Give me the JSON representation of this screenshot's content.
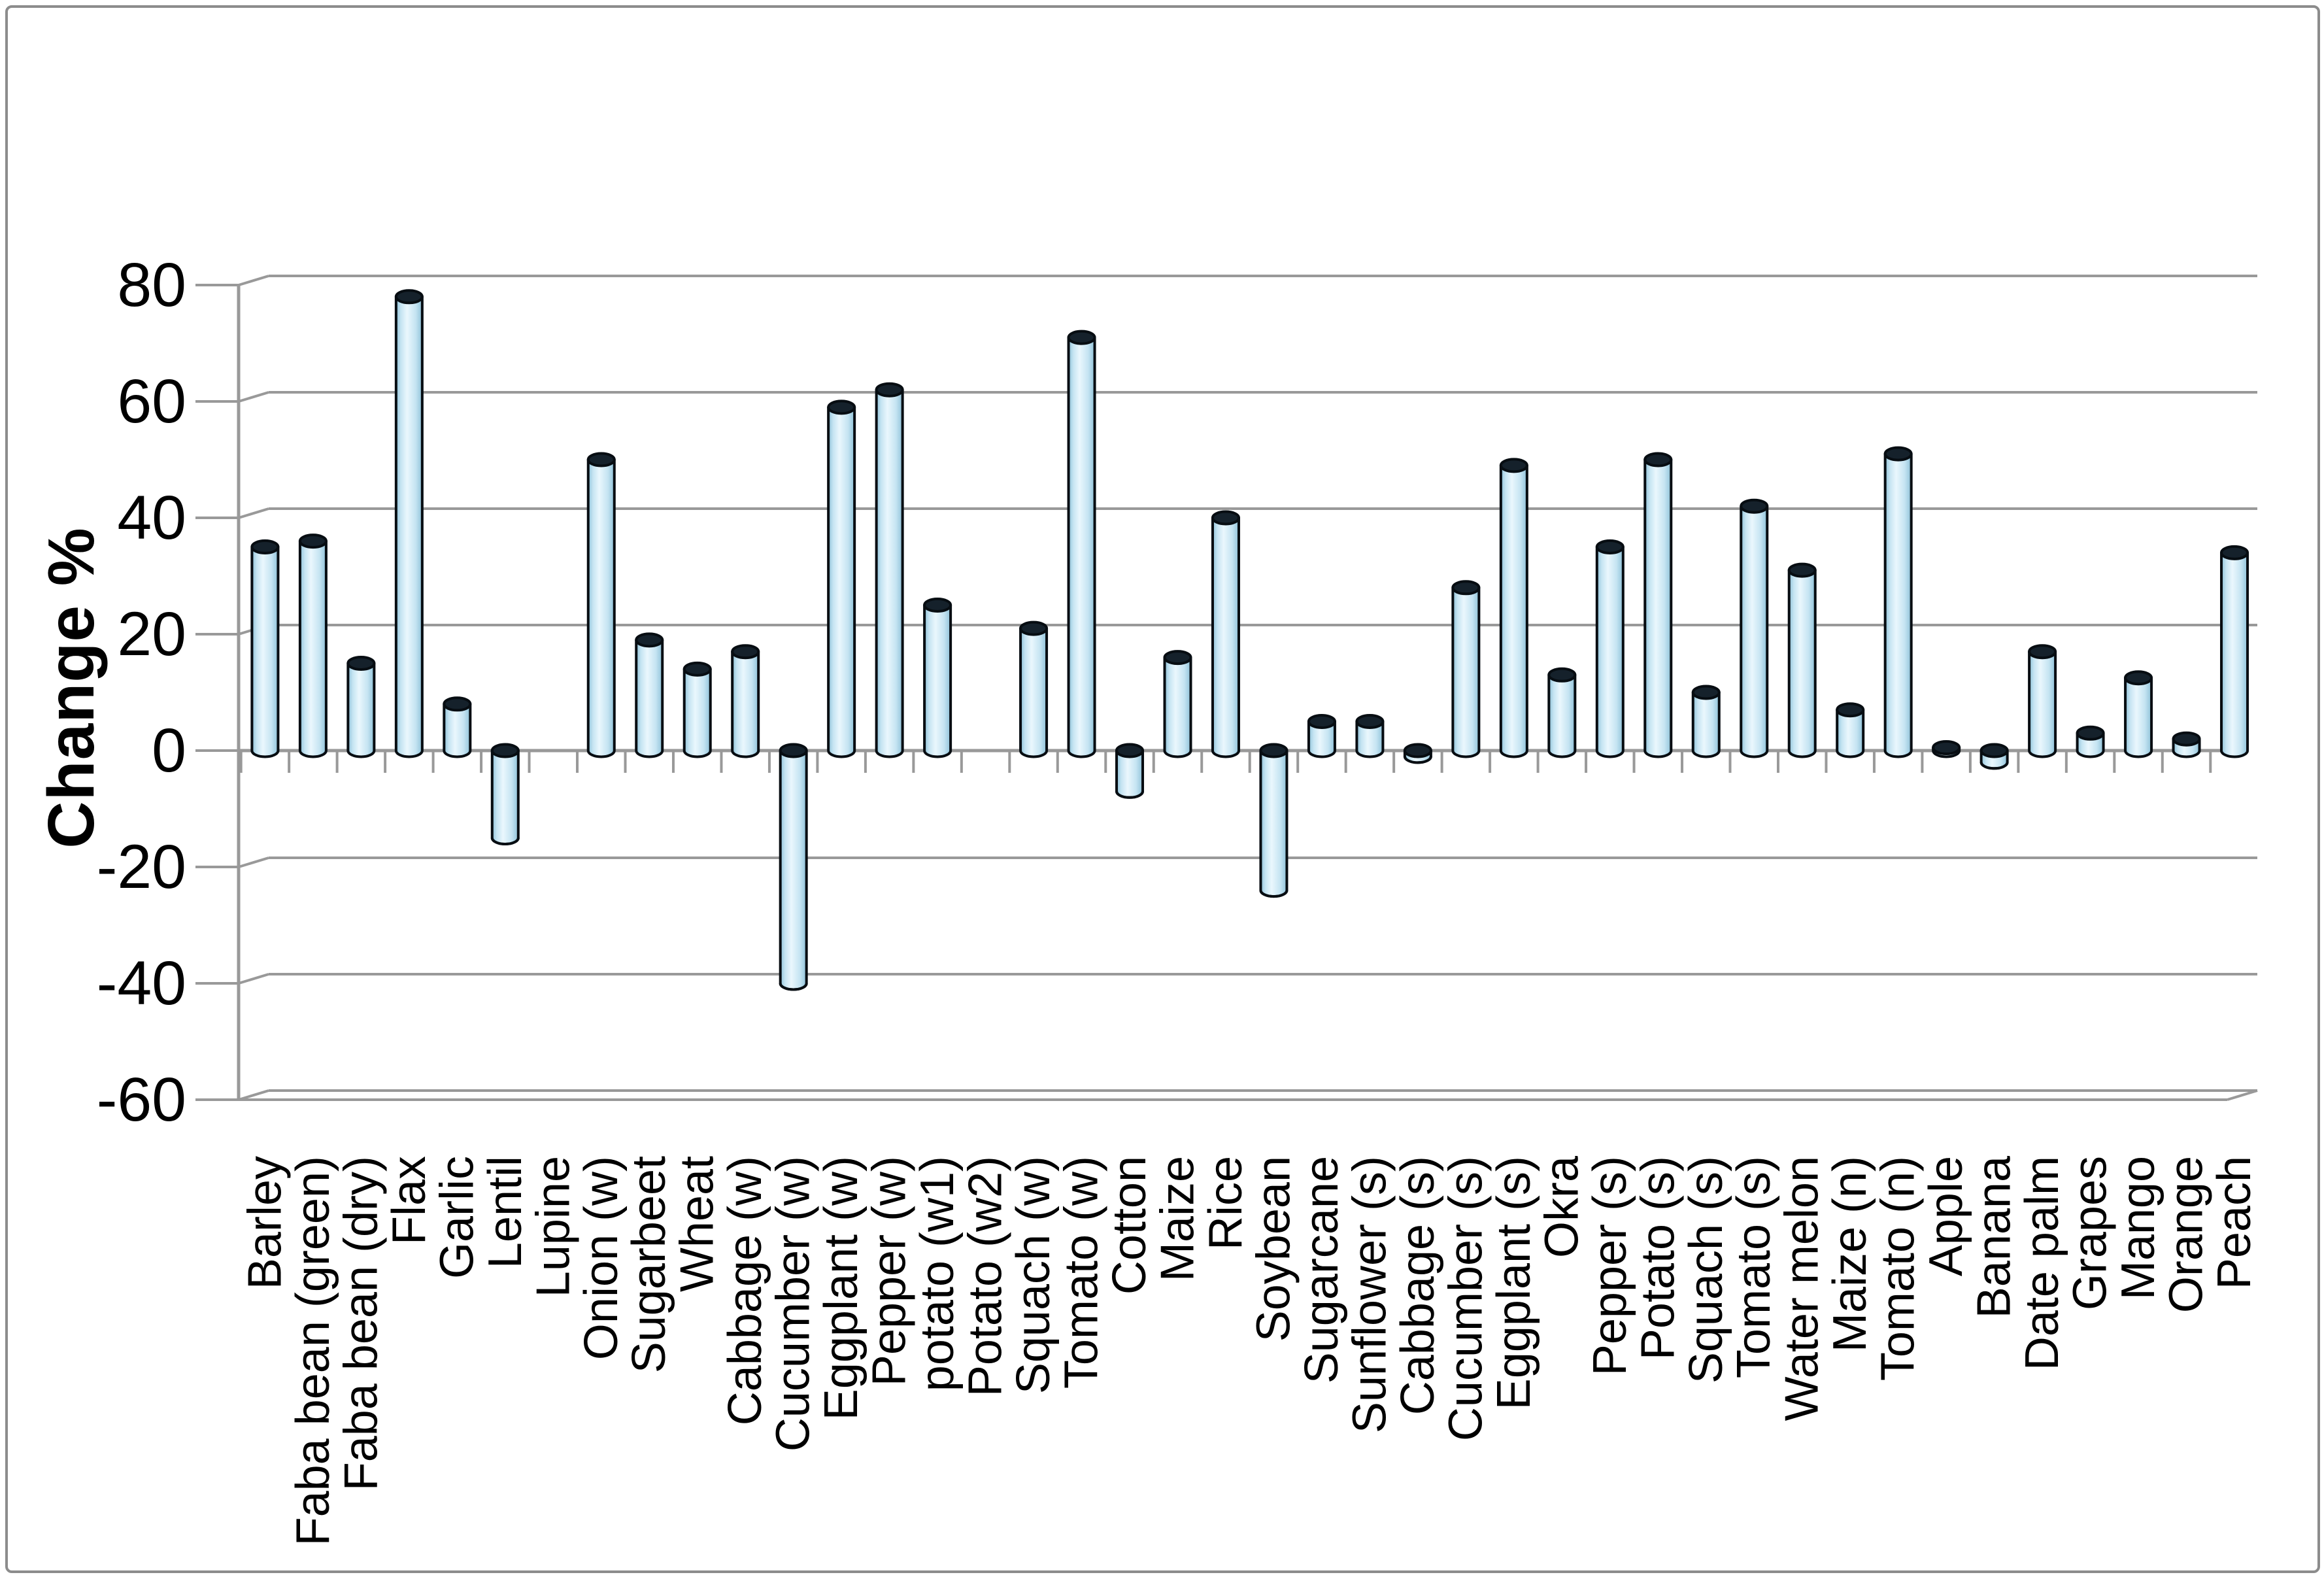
{
  "chart_data": {
    "type": "bar",
    "subtype": "3d-cylinder",
    "title": "",
    "xlabel": "",
    "ylabel": "Change %",
    "ylim": [
      -60,
      80
    ],
    "yticks": [
      80,
      60,
      40,
      20,
      0,
      -20,
      -40,
      -60
    ],
    "grid": true,
    "legend": false,
    "categories": [
      "Barley",
      "Faba bean (green)",
      "Faba bean (dry)",
      "Flax",
      "Garlic",
      "Lentil",
      "Lupine",
      "Onion (w)",
      "Sugarbeet",
      "Wheat",
      "Cabbage (w)",
      "Cucumber (w)",
      "Eggplant (w)",
      "Pepper (w)",
      "potato (w1)",
      "Potato (w2)",
      "Squach (w)",
      "Tomato (w)",
      "Cotton",
      "Maize",
      "Rice",
      "Soybean",
      "Sugarcane",
      "Sunflower (s)",
      "Cabbage (s)",
      "Cucumber (s)",
      "Eggplant (s)",
      "Okra",
      "Pepper (s)",
      "Potato (s)",
      "Squach (s)",
      "Tomato (s)",
      "Water melon",
      "Maize (n)",
      "Tomato (n)",
      "Apple",
      "Banana",
      "Date palm",
      "Grapes",
      "Mango",
      "Orange",
      "Peach"
    ],
    "values": [
      35,
      36,
      15,
      78,
      8,
      -15,
      0,
      50,
      19,
      14,
      17,
      -40,
      59,
      62,
      25,
      0,
      21,
      71,
      -7,
      16,
      40,
      -24,
      5,
      5,
      -1,
      28,
      49,
      13,
      35,
      50,
      10,
      42,
      31,
      7,
      51,
      0.5,
      -2,
      17,
      3,
      12.5,
      2,
      34
    ],
    "colors": {
      "bar_fill": "#c5e4f2",
      "bar_highlight": "#eaf7fd",
      "bar_shadow": "#8fc2d9",
      "bar_cap": "#15212b",
      "bar_outline": "#070d12",
      "axis": "#999999",
      "text": "#000000",
      "border": "#8c8c8c",
      "background": "#ffffff"
    }
  }
}
